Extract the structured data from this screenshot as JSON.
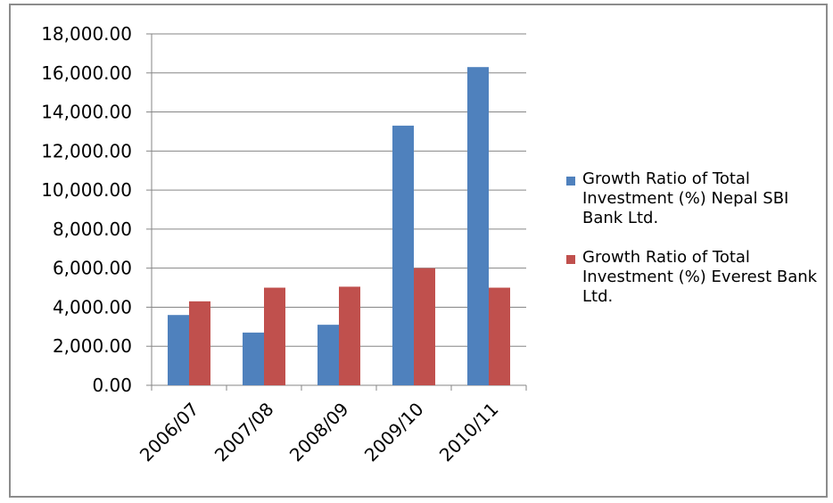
{
  "chart_data": {
    "type": "bar",
    "title": "",
    "xlabel": "",
    "ylabel": "",
    "categories": [
      "2006/07",
      "2007/08",
      "2008/09",
      "2009/10",
      "2010/11"
    ],
    "series": [
      {
        "name": "Growth Ratio of Total Investment (%) Nepal SBI Bank Ltd.",
        "color": "#4f81bd",
        "values": [
          3600,
          2700,
          3100,
          13300,
          16300
        ]
      },
      {
        "name": "Growth Ratio of Total Investment (%) Everest Bank Ltd.",
        "color": "#c0504d",
        "values": [
          4300,
          5000,
          5050,
          6000,
          5000
        ]
      }
    ],
    "ylim": [
      0,
      18000
    ],
    "yticks": [
      "0.00",
      "2,000.00",
      "4,000.00",
      "6,000.00",
      "8,000.00",
      "10,000.00",
      "12,000.00",
      "14,000.00",
      "16,000.00",
      "18,000.00"
    ],
    "grid": true,
    "legend_position": "right"
  }
}
